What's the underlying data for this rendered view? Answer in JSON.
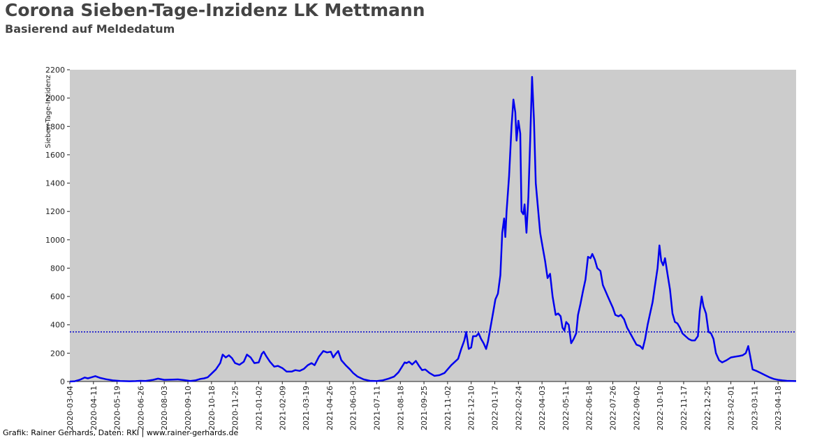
{
  "header": {
    "title": "Corona Sieben-Tage-Inzidenz LK Mettmann",
    "subtitle": "Basierend auf Meldedatum"
  },
  "footer": {
    "credit": "Grafik: Rainer Gerhards, Daten: RKI | www.rainer-gerhards.de"
  },
  "colors": {
    "plot_background": "#cccccc",
    "series_line": "#0000ee",
    "reference_line": "#0000cc",
    "axis": "#222222"
  },
  "chart_data": {
    "type": "line",
    "title": "Corona Sieben-Tage-Inzidenz LK Mettmann",
    "subtitle": "Basierend auf Meldedatum",
    "xlabel": "",
    "ylabel": "Sieben-Tage-Inzidenz",
    "x_type": "date",
    "xlim": [
      "2020-03-04",
      "2023-05-17"
    ],
    "ylim": [
      0,
      2200
    ],
    "grid": false,
    "legend": "none",
    "x_ticks": [
      "2020-03-04",
      "2020-04-11",
      "2020-05-19",
      "2020-06-26",
      "2020-08-03",
      "2020-09-10",
      "2020-10-18",
      "2020-11-25",
      "2021-01-02",
      "2021-02-09",
      "2021-03-19",
      "2021-04-26",
      "2021-06-03",
      "2021-07-11",
      "2021-08-18",
      "2021-09-25",
      "2021-11-02",
      "2021-12-10",
      "2022-01-17",
      "2022-02-24",
      "2022-04-03",
      "2022-05-11",
      "2022-06-18",
      "2022-07-26",
      "2022-09-02",
      "2022-10-10",
      "2022-11-17",
      "2022-12-25",
      "2023-02-01",
      "2023-03-11",
      "2023-04-18"
    ],
    "y_ticks": [
      "0",
      "200",
      "400",
      "600",
      "800",
      "1000",
      "1200",
      "1400",
      "1600",
      "1800",
      "2000",
      "2200"
    ],
    "reference_line": {
      "y": 350,
      "style": "dotted"
    },
    "series": [
      {
        "points": [
          [
            "2020-03-04",
            0
          ],
          [
            "2020-03-12",
            2
          ],
          [
            "2020-03-20",
            12
          ],
          [
            "2020-03-28",
            28
          ],
          [
            "2020-04-02",
            22
          ],
          [
            "2020-04-08",
            30
          ],
          [
            "2020-04-14",
            38
          ],
          [
            "2020-04-22",
            25
          ],
          [
            "2020-05-01",
            16
          ],
          [
            "2020-05-12",
            8
          ],
          [
            "2020-05-24",
            4
          ],
          [
            "2020-06-08",
            2
          ],
          [
            "2020-06-18",
            3
          ],
          [
            "2020-06-26",
            5
          ],
          [
            "2020-07-04",
            4
          ],
          [
            "2020-07-16",
            12
          ],
          [
            "2020-07-24",
            20
          ],
          [
            "2020-08-03",
            12
          ],
          [
            "2020-08-13",
            13
          ],
          [
            "2020-08-25",
            15
          ],
          [
            "2020-09-04",
            10
          ],
          [
            "2020-09-14",
            4
          ],
          [
            "2020-09-22",
            8
          ],
          [
            "2020-09-30",
            18
          ],
          [
            "2020-10-06",
            22
          ],
          [
            "2020-10-12",
            30
          ],
          [
            "2020-10-18",
            55
          ],
          [
            "2020-10-25",
            85
          ],
          [
            "2020-11-01",
            130
          ],
          [
            "2020-11-05",
            190
          ],
          [
            "2020-11-10",
            170
          ],
          [
            "2020-11-15",
            185
          ],
          [
            "2020-11-20",
            165
          ],
          [
            "2020-11-25",
            130
          ],
          [
            "2020-12-02",
            118
          ],
          [
            "2020-12-09",
            140
          ],
          [
            "2020-12-14",
            190
          ],
          [
            "2020-12-20",
            170
          ],
          [
            "2020-12-26",
            130
          ],
          [
            "2021-01-02",
            135
          ],
          [
            "2021-01-07",
            195
          ],
          [
            "2021-01-10",
            210
          ],
          [
            "2021-01-14",
            180
          ],
          [
            "2021-01-20",
            140
          ],
          [
            "2021-01-27",
            105
          ],
          [
            "2021-02-02",
            110
          ],
          [
            "2021-02-09",
            95
          ],
          [
            "2021-02-16",
            70
          ],
          [
            "2021-02-24",
            70
          ],
          [
            "2021-03-02",
            80
          ],
          [
            "2021-03-09",
            75
          ],
          [
            "2021-03-16",
            90
          ],
          [
            "2021-03-22",
            115
          ],
          [
            "2021-03-28",
            130
          ],
          [
            "2021-04-02",
            115
          ],
          [
            "2021-04-09",
            175
          ],
          [
            "2021-04-16",
            215
          ],
          [
            "2021-04-22",
            205
          ],
          [
            "2021-04-28",
            210
          ],
          [
            "2021-05-02",
            170
          ],
          [
            "2021-05-06",
            195
          ],
          [
            "2021-05-10",
            215
          ],
          [
            "2021-05-15",
            150
          ],
          [
            "2021-05-22",
            115
          ],
          [
            "2021-05-29",
            85
          ],
          [
            "2021-06-03",
            60
          ],
          [
            "2021-06-10",
            35
          ],
          [
            "2021-06-20",
            15
          ],
          [
            "2021-06-30",
            5
          ],
          [
            "2021-07-11",
            3
          ],
          [
            "2021-07-20",
            8
          ],
          [
            "2021-07-30",
            20
          ],
          [
            "2021-08-08",
            35
          ],
          [
            "2021-08-15",
            65
          ],
          [
            "2021-08-20",
            100
          ],
          [
            "2021-08-25",
            135
          ],
          [
            "2021-08-28",
            130
          ],
          [
            "2021-09-01",
            140
          ],
          [
            "2021-09-06",
            120
          ],
          [
            "2021-09-12",
            145
          ],
          [
            "2021-09-17",
            110
          ],
          [
            "2021-09-22",
            80
          ],
          [
            "2021-09-27",
            85
          ],
          [
            "2021-10-04",
            60
          ],
          [
            "2021-10-12",
            40
          ],
          [
            "2021-10-20",
            45
          ],
          [
            "2021-10-28",
            60
          ],
          [
            "2021-11-02",
            85
          ],
          [
            "2021-11-08",
            115
          ],
          [
            "2021-11-14",
            140
          ],
          [
            "2021-11-19",
            160
          ],
          [
            "2021-11-24",
            230
          ],
          [
            "2021-11-29",
            290
          ],
          [
            "2021-12-02",
            350
          ],
          [
            "2021-12-06",
            230
          ],
          [
            "2021-12-10",
            240
          ],
          [
            "2021-12-13",
            320
          ],
          [
            "2021-12-18",
            320
          ],
          [
            "2021-12-22",
            340
          ],
          [
            "2021-12-26",
            300
          ],
          [
            "2021-12-30",
            270
          ],
          [
            "2022-01-03",
            230
          ],
          [
            "2022-01-06",
            280
          ],
          [
            "2022-01-10",
            380
          ],
          [
            "2022-01-14",
            480
          ],
          [
            "2022-01-18",
            580
          ],
          [
            "2022-01-22",
            620
          ],
          [
            "2022-01-26",
            750
          ],
          [
            "2022-01-29",
            1050
          ],
          [
            "2022-02-01",
            1150
          ],
          [
            "2022-02-03",
            1020
          ],
          [
            "2022-02-05",
            1200
          ],
          [
            "2022-02-09",
            1450
          ],
          [
            "2022-02-13",
            1800
          ],
          [
            "2022-02-16",
            1990
          ],
          [
            "2022-02-19",
            1900
          ],
          [
            "2022-02-21",
            1700
          ],
          [
            "2022-02-24",
            1840
          ],
          [
            "2022-02-27",
            1750
          ],
          [
            "2022-03-01",
            1200
          ],
          [
            "2022-03-04",
            1180
          ],
          [
            "2022-03-06",
            1250
          ],
          [
            "2022-03-09",
            1050
          ],
          [
            "2022-03-12",
            1300
          ],
          [
            "2022-03-15",
            1700
          ],
          [
            "2022-03-18",
            2150
          ],
          [
            "2022-03-21",
            1850
          ],
          [
            "2022-03-24",
            1400
          ],
          [
            "2022-03-27",
            1250
          ],
          [
            "2022-03-31",
            1050
          ],
          [
            "2022-04-04",
            950
          ],
          [
            "2022-04-08",
            850
          ],
          [
            "2022-04-12",
            730
          ],
          [
            "2022-04-16",
            760
          ],
          [
            "2022-04-20",
            600
          ],
          [
            "2022-04-25",
            470
          ],
          [
            "2022-04-29",
            480
          ],
          [
            "2022-05-03",
            460
          ],
          [
            "2022-05-06",
            380
          ],
          [
            "2022-05-09",
            360
          ],
          [
            "2022-05-12",
            420
          ],
          [
            "2022-05-16",
            400
          ],
          [
            "2022-05-20",
            270
          ],
          [
            "2022-05-24",
            300
          ],
          [
            "2022-05-28",
            340
          ],
          [
            "2022-05-31",
            470
          ],
          [
            "2022-06-04",
            550
          ],
          [
            "2022-06-08",
            640
          ],
          [
            "2022-06-12",
            720
          ],
          [
            "2022-06-16",
            880
          ],
          [
            "2022-06-20",
            870
          ],
          [
            "2022-06-23",
            900
          ],
          [
            "2022-06-27",
            860
          ],
          [
            "2022-07-01",
            800
          ],
          [
            "2022-07-06",
            780
          ],
          [
            "2022-07-10",
            680
          ],
          [
            "2022-07-14",
            640
          ],
          [
            "2022-07-18",
            600
          ],
          [
            "2022-07-22",
            560
          ],
          [
            "2022-07-26",
            520
          ],
          [
            "2022-07-30",
            470
          ],
          [
            "2022-08-04",
            460
          ],
          [
            "2022-08-08",
            470
          ],
          [
            "2022-08-13",
            440
          ],
          [
            "2022-08-18",
            380
          ],
          [
            "2022-08-23",
            340
          ],
          [
            "2022-08-28",
            300
          ],
          [
            "2022-09-02",
            260
          ],
          [
            "2022-09-08",
            250
          ],
          [
            "2022-09-12",
            230
          ],
          [
            "2022-09-16",
            300
          ],
          [
            "2022-09-20",
            400
          ],
          [
            "2022-09-24",
            480
          ],
          [
            "2022-09-28",
            560
          ],
          [
            "2022-10-02",
            680
          ],
          [
            "2022-10-06",
            800
          ],
          [
            "2022-10-09",
            960
          ],
          [
            "2022-10-12",
            850
          ],
          [
            "2022-10-15",
            820
          ],
          [
            "2022-10-18",
            870
          ],
          [
            "2022-10-22",
            760
          ],
          [
            "2022-10-26",
            650
          ],
          [
            "2022-10-30",
            480
          ],
          [
            "2022-11-03",
            420
          ],
          [
            "2022-11-07",
            410
          ],
          [
            "2022-11-11",
            380
          ],
          [
            "2022-11-15",
            340
          ],
          [
            "2022-11-20",
            320
          ],
          [
            "2022-11-25",
            300
          ],
          [
            "2022-11-30",
            290
          ],
          [
            "2022-12-05",
            290
          ],
          [
            "2022-12-10",
            320
          ],
          [
            "2022-12-13",
            500
          ],
          [
            "2022-12-16",
            600
          ],
          [
            "2022-12-19",
            530
          ],
          [
            "2022-12-23",
            480
          ],
          [
            "2022-12-27",
            350
          ],
          [
            "2022-12-31",
            340
          ],
          [
            "2023-01-04",
            300
          ],
          [
            "2023-01-08",
            200
          ],
          [
            "2023-01-13",
            150
          ],
          [
            "2023-01-18",
            135
          ],
          [
            "2023-01-25",
            150
          ],
          [
            "2023-02-01",
            170
          ],
          [
            "2023-02-08",
            175
          ],
          [
            "2023-02-15",
            180
          ],
          [
            "2023-02-20",
            185
          ],
          [
            "2023-02-25",
            200
          ],
          [
            "2023-03-01",
            250
          ],
          [
            "2023-03-04",
            180
          ],
          [
            "2023-03-08",
            85
          ],
          [
            "2023-03-14",
            75
          ],
          [
            "2023-03-21",
            60
          ],
          [
            "2023-03-28",
            45
          ],
          [
            "2023-04-04",
            30
          ],
          [
            "2023-04-11",
            18
          ],
          [
            "2023-04-18",
            12
          ],
          [
            "2023-04-25",
            8
          ],
          [
            "2023-05-02",
            5
          ],
          [
            "2023-05-10",
            4
          ],
          [
            "2023-05-17",
            3
          ]
        ]
      }
    ]
  }
}
